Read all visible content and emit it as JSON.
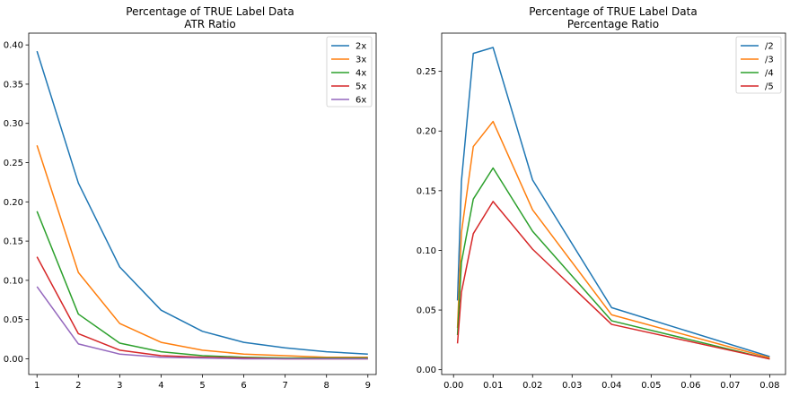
{
  "chart_data": [
    {
      "type": "line",
      "title": "Percentage of TRUE Label Data",
      "subtitle": "ATR Ratio",
      "x": [
        1,
        2,
        3,
        4,
        5,
        6,
        7,
        8,
        9
      ],
      "xticks": [
        "1",
        "2",
        "3",
        "4",
        "5",
        "6",
        "7",
        "8",
        "9"
      ],
      "yticks": [
        "0.00",
        "0.05",
        "0.10",
        "0.15",
        "0.20",
        "0.25",
        "0.30",
        "0.35",
        "0.40"
      ],
      "xlim": [
        0.8,
        9.2
      ],
      "ylim": [
        -0.02,
        0.415
      ],
      "grid": false,
      "legend_position": "top-right",
      "series": [
        {
          "name": "2x",
          "color": "#1f77b4",
          "values": [
            0.392,
            0.224,
            0.117,
            0.062,
            0.035,
            0.021,
            0.014,
            0.009,
            0.006
          ]
        },
        {
          "name": "3x",
          "color": "#ff7f0e",
          "values": [
            0.272,
            0.11,
            0.045,
            0.021,
            0.011,
            0.006,
            0.004,
            0.002,
            0.002
          ]
        },
        {
          "name": "4x",
          "color": "#2ca02c",
          "values": [
            0.188,
            0.057,
            0.02,
            0.009,
            0.004,
            0.002,
            0.001,
            0.001,
            0.001
          ]
        },
        {
          "name": "5x",
          "color": "#d62728",
          "values": [
            0.13,
            0.032,
            0.011,
            0.004,
            0.002,
            0.001,
            0.0,
            0.0,
            0.0
          ]
        },
        {
          "name": "6x",
          "color": "#9467bd",
          "values": [
            0.092,
            0.019,
            0.006,
            0.002,
            0.001,
            0.0,
            0.0,
            0.0,
            0.0
          ]
        }
      ]
    },
    {
      "type": "line",
      "title": "Percentage of TRUE Label Data",
      "subtitle": "Percentage Ratio",
      "x": [
        0.001,
        0.002,
        0.005,
        0.01,
        0.02,
        0.04,
        0.08
      ],
      "xticks": [
        "0.00",
        "0.01",
        "0.02",
        "0.03",
        "0.04",
        "0.05",
        "0.06",
        "0.07",
        "0.08"
      ],
      "yticks": [
        "0.00",
        "0.05",
        "0.10",
        "0.15",
        "0.20",
        "0.25"
      ],
      "xlim": [
        -0.003,
        0.084
      ],
      "ylim": [
        -0.004,
        0.282
      ],
      "grid": false,
      "legend_position": "top-right",
      "series": [
        {
          "name": "/2",
          "color": "#1f77b4",
          "values": [
            0.058,
            0.158,
            0.265,
            0.27,
            0.159,
            0.052,
            0.011
          ]
        },
        {
          "name": "/3",
          "color": "#ff7f0e",
          "values": [
            0.035,
            0.115,
            0.187,
            0.208,
            0.134,
            0.046,
            0.01
          ]
        },
        {
          "name": "/4",
          "color": "#2ca02c",
          "values": [
            0.029,
            0.09,
            0.143,
            0.169,
            0.116,
            0.041,
            0.009
          ]
        },
        {
          "name": "/5",
          "color": "#d62728",
          "values": [
            0.022,
            0.065,
            0.114,
            0.141,
            0.101,
            0.038,
            0.009
          ]
        }
      ]
    }
  ]
}
